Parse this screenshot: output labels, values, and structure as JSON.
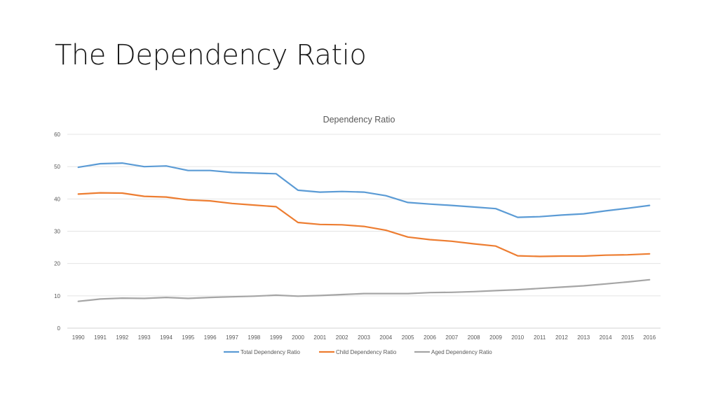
{
  "slide": {
    "title": "The Dependency Ratio"
  },
  "chart_data": {
    "type": "line",
    "title": "Dependency Ratio",
    "xlabel": "",
    "ylabel": "",
    "ylim": [
      0,
      60
    ],
    "yticks": [
      0,
      10,
      20,
      30,
      40,
      50,
      60
    ],
    "grid": true,
    "legend": "bottom",
    "x": [
      "1990",
      "1991",
      "1992",
      "1993",
      "1994",
      "1995",
      "1996",
      "1997",
      "1998",
      "1999",
      "2000",
      "2001",
      "2002",
      "2003",
      "2004",
      "2005",
      "2006",
      "2007",
      "2008",
      "2009",
      "2010",
      "2011",
      "2012",
      "2013",
      "2014",
      "2015",
      "2016"
    ],
    "series": [
      {
        "name": "Total Dependency Ratio",
        "color": "#5B9BD5",
        "values": [
          49.8,
          50.9,
          51.1,
          50.0,
          50.2,
          48.8,
          48.8,
          48.2,
          48.0,
          47.8,
          42.7,
          42.1,
          42.3,
          42.1,
          41.0,
          38.9,
          38.4,
          38.0,
          37.5,
          37.0,
          34.3,
          34.5,
          35.0,
          35.4,
          36.3,
          37.1,
          38.0
        ]
      },
      {
        "name": "Child Dependency Ratio",
        "color": "#ED7D31",
        "values": [
          41.5,
          41.9,
          41.8,
          40.8,
          40.6,
          39.7,
          39.4,
          38.6,
          38.1,
          37.6,
          32.7,
          32.1,
          32.0,
          31.5,
          30.3,
          28.2,
          27.4,
          26.9,
          26.1,
          25.4,
          22.4,
          22.2,
          22.3,
          22.3,
          22.6,
          22.7,
          23.0
        ]
      },
      {
        "name": "Aged Dependency Ratio",
        "color": "#A5A5A5",
        "values": [
          8.3,
          9.0,
          9.3,
          9.2,
          9.5,
          9.2,
          9.5,
          9.7,
          9.9,
          10.2,
          9.9,
          10.1,
          10.4,
          10.7,
          10.7,
          10.7,
          11.0,
          11.1,
          11.3,
          11.6,
          11.9,
          12.3,
          12.7,
          13.1,
          13.7,
          14.3,
          15.0
        ]
      }
    ]
  }
}
